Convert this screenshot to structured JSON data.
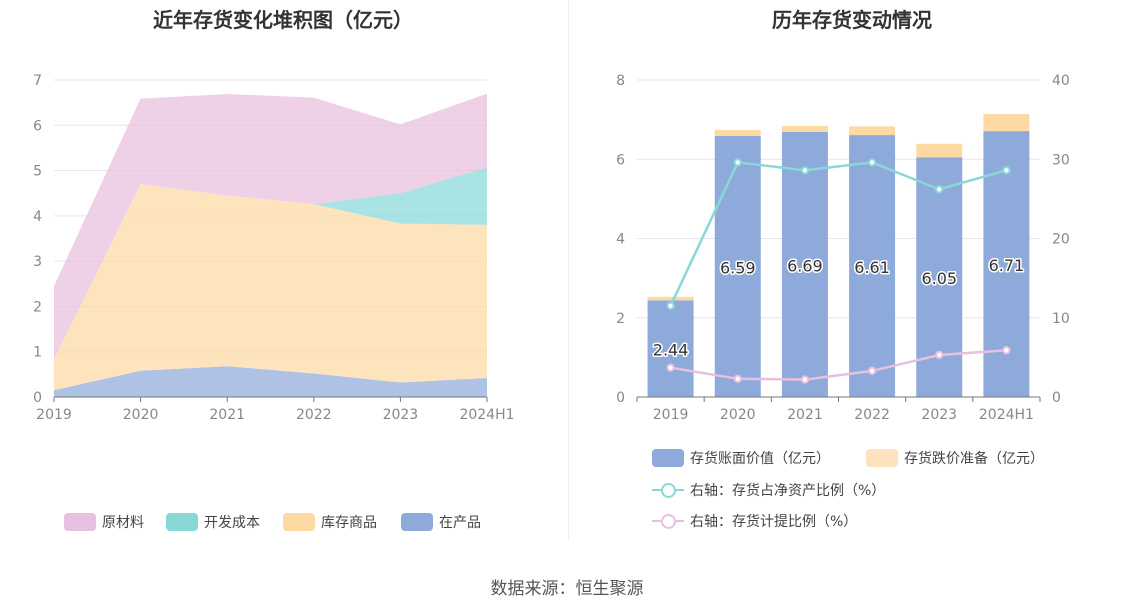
{
  "source": "数据来源：恒生聚源",
  "left_chart": {
    "title": "近年存货变化堆积图（亿元）",
    "legend": [
      {
        "name": "原材料",
        "color": "#e8bfde"
      },
      {
        "name": "开发成本",
        "color": "#88d8d8"
      },
      {
        "name": "库存商品",
        "color": "#fdd9a3"
      },
      {
        "name": "在产品",
        "color": "#8eaadb"
      }
    ]
  },
  "right_chart": {
    "title": "历年存货变动情况",
    "legend": [
      {
        "name": "存货账面价值（亿元）",
        "color": "#8eaadb"
      },
      {
        "name": "存货跌价准备（亿元）",
        "color": "#fde3bd"
      },
      {
        "name": "右轴：存货占净资产比例（%）",
        "color": "#88d8d8"
      },
      {
        "name": "右轴：存货计提比例（%）",
        "color": "#e8bfde"
      }
    ]
  },
  "chart_data": [
    {
      "type": "area",
      "stacked": true,
      "title": "近年存货变化堆积图（亿元）",
      "x": [
        "2019",
        "2020",
        "2021",
        "2022",
        "2023",
        "2024H1"
      ],
      "ylim": [
        0,
        7
      ],
      "yticks": [
        0,
        1,
        2,
        3,
        4,
        5,
        6,
        7
      ],
      "grid": true,
      "legend_position": "bottom",
      "series": [
        {
          "name": "在产品",
          "color": "#8eaadb",
          "values": [
            0.15,
            0.58,
            0.68,
            0.52,
            0.32,
            0.42
          ]
        },
        {
          "name": "库存商品",
          "color": "#fdd9a3",
          "values": [
            0.68,
            4.12,
            3.77,
            3.74,
            3.51,
            3.38
          ]
        },
        {
          "name": "开发成本",
          "color": "#88d8d8",
          "values": [
            0,
            0,
            0,
            0,
            0.67,
            1.27
          ]
        },
        {
          "name": "原材料",
          "color": "#e8bfde",
          "values": [
            1.62,
            1.89,
            2.24,
            2.35,
            1.52,
            1.63
          ]
        }
      ]
    },
    {
      "type": "bar",
      "stacked": true,
      "title": "历年存货变动情况",
      "categories": [
        "2019",
        "2020",
        "2021",
        "2022",
        "2023",
        "2024H1"
      ],
      "ylim": [
        0,
        8
      ],
      "yticks": [
        0,
        2,
        4,
        6,
        8
      ],
      "y2lim": [
        0,
        40
      ],
      "y2ticks": [
        0,
        10,
        20,
        30,
        40
      ],
      "grid": true,
      "legend_position": "bottom",
      "series": [
        {
          "name": "存货账面价值（亿元）",
          "color": "#8eaadb",
          "axis": "left",
          "values": [
            2.44,
            6.59,
            6.69,
            6.61,
            6.05,
            6.71
          ],
          "labels": [
            "2.44",
            "6.59",
            "6.69",
            "6.61",
            "6.05",
            "6.71"
          ]
        },
        {
          "name": "存货跌价准备（亿元）",
          "color": "#fde3bd",
          "axis": "left",
          "values": [
            0.09,
            0.15,
            0.15,
            0.22,
            0.34,
            0.43
          ]
        },
        {
          "name": "右轴：存货占净资产比例（%）",
          "type": "line",
          "color": "#88d8d8",
          "axis": "right",
          "values": [
            11.5,
            29.6,
            28.6,
            29.6,
            26.2,
            28.6
          ]
        },
        {
          "name": "右轴：存货计提比例（%）",
          "type": "line",
          "color": "#e8bfde",
          "axis": "right",
          "values": [
            3.7,
            2.3,
            2.2,
            3.3,
            5.3,
            5.9
          ]
        }
      ]
    }
  ]
}
